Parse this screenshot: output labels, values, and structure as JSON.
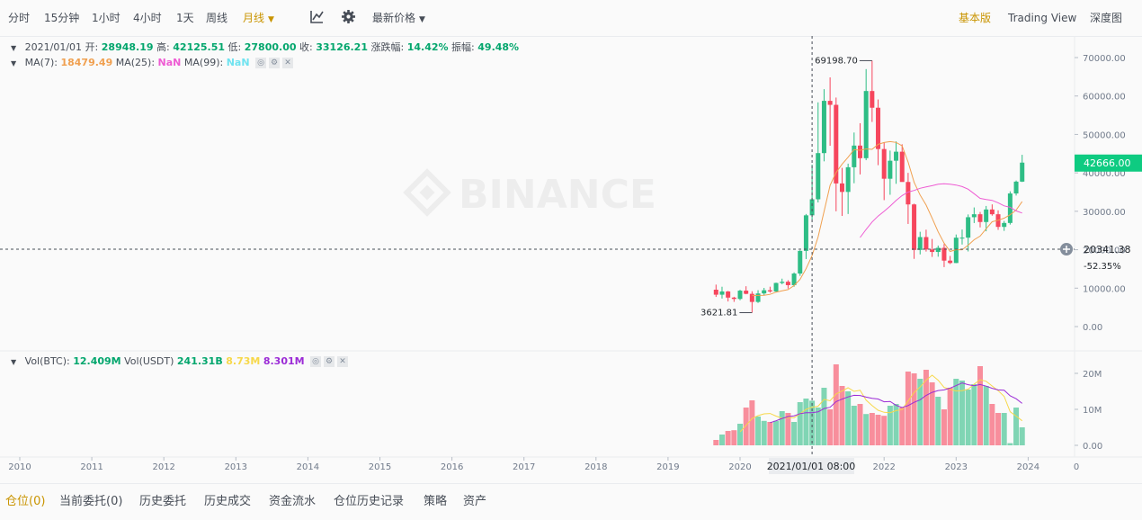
{
  "toolbar": {
    "intervals": [
      "分时",
      "15分钟",
      "1小时",
      "4小时",
      "1天",
      "周线",
      "月线"
    ],
    "active_interval": "月线",
    "price_type": "最新价格",
    "views": [
      "基本版",
      "Trading View",
      "深度图"
    ],
    "active_view": "基本版",
    "icons": [
      "indicator-icon",
      "gear-icon"
    ]
  },
  "ohlc": {
    "date": "2021/01/01",
    "open_label": "开:",
    "open": "28948.19",
    "high_label": "高:",
    "high": "42125.51",
    "low_label": "低:",
    "low": "27800.00",
    "close_label": "收:",
    "close": "33126.21",
    "change_label": "涨跌幅:",
    "change": "14.42%",
    "amplitude_label": "振幅:",
    "amplitude": "49.48%"
  },
  "ma": {
    "ma7_label": "MA(7):",
    "ma7": "18479.49",
    "ma25_label": "MA(25):",
    "ma25": "NaN",
    "ma99_label": "MA(99):",
    "ma99": "NaN"
  },
  "vol": {
    "btc_label": "Vol(BTC):",
    "btc": "12.409M",
    "usdt_label": "Vol(USDT)",
    "usdt": "241.31B",
    "ma1": "8.73M",
    "ma2": "8.301M"
  },
  "watermark": "BINANCE",
  "crosshair": {
    "time_label": "2021/01/01 08:00",
    "price": "20341.38",
    "pct": "-52.35%"
  },
  "last_price": "42666.00",
  "annotations": {
    "max": "69198.70",
    "min": "3621.81"
  },
  "bottom_tabs": [
    "仓位(0)",
    "当前委托(0)",
    "历史委托",
    "历史成交",
    "资金流水",
    "仓位历史记录",
    "策略",
    "资产"
  ],
  "active_bottom_tab": "仓位(0)",
  "colors": {
    "up": "#2ebd85",
    "down": "#f6465d",
    "accent": "#c99400",
    "ma7": "#f0a050",
    "ma25": "#ee5bd3",
    "last_price_bg": "#0ecb81"
  },
  "chart_data": {
    "type": "candlestick",
    "title": "",
    "interval": "1M",
    "x_axis_ticks": [
      "2010",
      "2011",
      "2012",
      "2013",
      "2014",
      "2015",
      "2016",
      "2017",
      "2018",
      "2019",
      "2020",
      "2022",
      "2023",
      "2024"
    ],
    "y_axis_ticks": [
      "70000.00",
      "60000.00",
      "50000.00",
      "40000.00",
      "30000.00",
      "20000.00",
      "10000.00",
      "0.00"
    ],
    "ylim": [
      0,
      70000
    ],
    "vol_axis_ticks": [
      "20M",
      "10M",
      "0.00"
    ],
    "vol_ylim": [
      0,
      20000000
    ],
    "x_range": [
      2009.85,
      2024.3
    ],
    "candles": [
      {
        "t": "2019-09",
        "o": 9600,
        "h": 10920,
        "l": 7710,
        "c": 8290
      },
      {
        "t": "2019-10",
        "o": 8290,
        "h": 10370,
        "l": 7300,
        "c": 9140
      },
      {
        "t": "2019-11",
        "o": 9140,
        "h": 9270,
        "l": 6530,
        "c": 7540
      },
      {
        "t": "2019-12",
        "o": 7540,
        "h": 7750,
        "l": 6430,
        "c": 7190
      },
      {
        "t": "2020-01",
        "o": 7190,
        "h": 9580,
        "l": 6850,
        "c": 9350
      },
      {
        "t": "2020-02",
        "o": 9350,
        "h": 10500,
        "l": 8410,
        "c": 8520
      },
      {
        "t": "2020-03",
        "o": 8520,
        "h": 9190,
        "l": 3621.81,
        "c": 6410
      },
      {
        "t": "2020-04",
        "o": 6410,
        "h": 9460,
        "l": 6150,
        "c": 8620
      },
      {
        "t": "2020-05",
        "o": 8620,
        "h": 10070,
        "l": 8110,
        "c": 9450
      },
      {
        "t": "2020-06",
        "o": 9450,
        "h": 10380,
        "l": 8830,
        "c": 9140
      },
      {
        "t": "2020-07",
        "o": 9140,
        "h": 11440,
        "l": 8890,
        "c": 11350
      },
      {
        "t": "2020-08",
        "o": 11350,
        "h": 12470,
        "l": 11000,
        "c": 11660
      },
      {
        "t": "2020-09",
        "o": 11660,
        "h": 12070,
        "l": 9880,
        "c": 10780
      },
      {
        "t": "2020-10",
        "o": 10780,
        "h": 14100,
        "l": 10370,
        "c": 13800
      },
      {
        "t": "2020-11",
        "o": 13800,
        "h": 19860,
        "l": 13200,
        "c": 19700
      },
      {
        "t": "2020-12",
        "o": 19700,
        "h": 29300,
        "l": 17570,
        "c": 28950
      },
      {
        "t": "2021-01",
        "o": 28948.19,
        "h": 42125.51,
        "l": 27800,
        "c": 33126.21
      },
      {
        "t": "2021-02",
        "o": 33126,
        "h": 58350,
        "l": 32300,
        "c": 45140
      },
      {
        "t": "2021-03",
        "o": 45140,
        "h": 61780,
        "l": 43000,
        "c": 58740
      },
      {
        "t": "2021-04",
        "o": 58740,
        "h": 64850,
        "l": 47050,
        "c": 57700
      },
      {
        "t": "2021-05",
        "o": 57700,
        "h": 59600,
        "l": 30000,
        "c": 37250
      },
      {
        "t": "2021-06",
        "o": 37250,
        "h": 41300,
        "l": 28800,
        "c": 35040
      },
      {
        "t": "2021-07",
        "o": 35040,
        "h": 42400,
        "l": 29300,
        "c": 41460
      },
      {
        "t": "2021-08",
        "o": 41460,
        "h": 50500,
        "l": 37300,
        "c": 47100
      },
      {
        "t": "2021-09",
        "o": 47100,
        "h": 52900,
        "l": 39600,
        "c": 43820
      },
      {
        "t": "2021-10",
        "o": 43820,
        "h": 67000,
        "l": 43300,
        "c": 61300
      },
      {
        "t": "2021-11",
        "o": 61300,
        "h": 69198.7,
        "l": 53250,
        "c": 56950
      },
      {
        "t": "2021-12",
        "o": 56950,
        "h": 59100,
        "l": 42000,
        "c": 46200
      },
      {
        "t": "2022-01",
        "o": 46200,
        "h": 47990,
        "l": 32900,
        "c": 38470
      },
      {
        "t": "2022-02",
        "o": 38470,
        "h": 45800,
        "l": 34300,
        "c": 43160
      },
      {
        "t": "2022-03",
        "o": 43160,
        "h": 48190,
        "l": 37150,
        "c": 45510
      },
      {
        "t": "2022-04",
        "o": 45510,
        "h": 47440,
        "l": 37700,
        "c": 37630
      },
      {
        "t": "2022-05",
        "o": 37630,
        "h": 40000,
        "l": 26700,
        "c": 31790
      },
      {
        "t": "2022-06",
        "o": 31790,
        "h": 31990,
        "l": 17620,
        "c": 19940
      },
      {
        "t": "2022-07",
        "o": 19940,
        "h": 24670,
        "l": 18780,
        "c": 23290
      },
      {
        "t": "2022-08",
        "o": 23290,
        "h": 25210,
        "l": 19520,
        "c": 20050
      },
      {
        "t": "2022-09",
        "o": 20050,
        "h": 22800,
        "l": 18130,
        "c": 19420
      },
      {
        "t": "2022-10",
        "o": 19420,
        "h": 21080,
        "l": 18180,
        "c": 20490
      },
      {
        "t": "2022-11",
        "o": 20490,
        "h": 21480,
        "l": 15476,
        "c": 17160
      },
      {
        "t": "2022-12",
        "o": 17160,
        "h": 18380,
        "l": 16260,
        "c": 16540
      },
      {
        "t": "2023-01",
        "o": 16540,
        "h": 23960,
        "l": 16500,
        "c": 23130
      },
      {
        "t": "2023-02",
        "o": 23130,
        "h": 25250,
        "l": 21350,
        "c": 23140
      },
      {
        "t": "2023-03",
        "o": 23140,
        "h": 29180,
        "l": 19550,
        "c": 28460
      },
      {
        "t": "2023-04",
        "o": 28460,
        "h": 31000,
        "l": 26940,
        "c": 29230
      },
      {
        "t": "2023-05",
        "o": 29230,
        "h": 29820,
        "l": 25810,
        "c": 27210
      },
      {
        "t": "2023-06",
        "o": 27210,
        "h": 31390,
        "l": 24800,
        "c": 30470
      },
      {
        "t": "2023-07",
        "o": 30470,
        "h": 31800,
        "l": 28860,
        "c": 29230
      },
      {
        "t": "2023-08",
        "o": 29230,
        "h": 30250,
        "l": 25170,
        "c": 25940
      },
      {
        "t": "2023-09",
        "o": 25940,
        "h": 27480,
        "l": 24900,
        "c": 26960
      },
      {
        "t": "2023-10",
        "o": 26960,
        "h": 35190,
        "l": 26540,
        "c": 34640
      },
      {
        "t": "2023-11",
        "o": 34640,
        "h": 38000,
        "l": 34100,
        "c": 37720
      },
      {
        "t": "2023-12",
        "o": 37720,
        "h": 44700,
        "l": 37620,
        "c": 42666
      }
    ],
    "volume_m": [
      1.5,
      3.0,
      4.0,
      4.2,
      6.0,
      10.5,
      12.5,
      8.0,
      6.8,
      6.5,
      6.8,
      9.5,
      9.0,
      6.5,
      12.0,
      13.0,
      12.4,
      10.5,
      16.0,
      10.0,
      22.5,
      16.5,
      15.0,
      11.0,
      11.5,
      8.7,
      9.0,
      8.5,
      8.2,
      11.0,
      11.5,
      10.5,
      20.5,
      20.0,
      18.5,
      21.0,
      17.5,
      13.5,
      10.0,
      16.0,
      18.5,
      18.0,
      15.5,
      17.0,
      22.0,
      16.5,
      11.5,
      9.0,
      9.0,
      0.6,
      10.5,
      5.0
    ]
  }
}
